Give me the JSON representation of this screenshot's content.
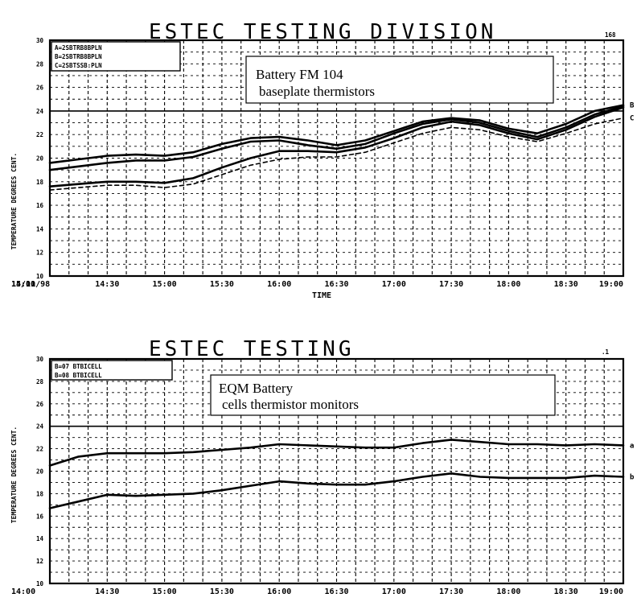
{
  "chart_data": [
    {
      "type": "line",
      "title": "ESTEC TESTING DIVISION",
      "corner_label": "168",
      "legend": [
        "A=2SBTRB8BPLN",
        "B=2SBTRB8BPLN",
        "C=2SBTSSB:PLN"
      ],
      "annotation": [
        "Battery FM 104",
        "baseplate thermistors"
      ],
      "xlabel": "TIME",
      "ylabel": "TEMPERATURE DEGREES CENT.",
      "date_label": "15/11/98",
      "x_ticks": [
        "14:00",
        "14:30",
        "15:00",
        "15:30",
        "16:00",
        "16:30",
        "17:00",
        "17:30",
        "18:00",
        "18:30",
        "19:00"
      ],
      "y_ticks": [
        "30",
        "28",
        "26",
        "24",
        "22",
        "20",
        "18",
        "16",
        "14",
        "12",
        "10"
      ],
      "ylim": [
        10,
        30
      ],
      "grid": true,
      "x": [
        "14:00",
        "14:15",
        "14:30",
        "14:45",
        "15:00",
        "15:15",
        "15:30",
        "15:45",
        "16:00",
        "16:15",
        "16:30",
        "16:45",
        "17:00",
        "17:15",
        "17:30",
        "17:45",
        "18:00",
        "18:15",
        "18:30",
        "18:45",
        "19:00"
      ],
      "series": [
        {
          "name": "B",
          "style": "solid",
          "values": [
            19.6,
            19.9,
            20.2,
            20.3,
            20.2,
            20.5,
            21.2,
            21.7,
            21.8,
            21.5,
            21.1,
            21.5,
            22.3,
            23.1,
            23.4,
            23.2,
            22.5,
            22.1,
            22.9,
            24.0,
            24.5
          ]
        },
        {
          "name": "",
          "style": "solid",
          "values": [
            19.0,
            19.3,
            19.6,
            19.8,
            19.8,
            20.1,
            20.8,
            21.4,
            21.5,
            21.1,
            20.8,
            21.2,
            22.1,
            22.9,
            23.3,
            23.0,
            22.3,
            21.8,
            22.6,
            23.7,
            24.4
          ]
        },
        {
          "name": "",
          "style": "solid",
          "values": [
            17.6,
            17.8,
            18.0,
            18.0,
            17.9,
            18.3,
            19.2,
            20.0,
            20.6,
            20.6,
            20.5,
            20.9,
            21.7,
            22.6,
            23.1,
            22.8,
            22.1,
            21.6,
            22.4,
            23.5,
            24.3
          ]
        },
        {
          "name": "C",
          "style": "dashed",
          "values": [
            17.3,
            17.5,
            17.7,
            17.7,
            17.5,
            17.8,
            18.6,
            19.4,
            19.9,
            20.1,
            20.1,
            20.5,
            21.3,
            22.1,
            22.6,
            22.4,
            21.8,
            21.4,
            22.1,
            22.9,
            23.4
          ]
        }
      ]
    },
    {
      "type": "line",
      "title": "ESTEC TESTING",
      "corner_label": ".1",
      "legend": [
        "B=07 BTBICELL",
        "B=08 BTBICELL"
      ],
      "annotation": [
        "EQM Battery",
        "cells thermistor  monitors"
      ],
      "xlabel": "",
      "ylabel": "TEMPERATURE DEGREES CENT.",
      "x_ticks": [
        "14:00",
        "14:30",
        "15:00",
        "15:30",
        "16:00",
        "16:30",
        "17:00",
        "17:30",
        "18:00",
        "18:30",
        "19:00"
      ],
      "y_ticks": [
        "30",
        "28",
        "26",
        "24",
        "22",
        "20",
        "18",
        "16",
        "14",
        "12",
        "10"
      ],
      "ylim": [
        10,
        30
      ],
      "grid": true,
      "x": [
        "14:00",
        "14:15",
        "14:30",
        "14:45",
        "15:00",
        "15:15",
        "15:30",
        "15:45",
        "16:00",
        "16:15",
        "16:30",
        "16:45",
        "17:00",
        "17:15",
        "17:30",
        "17:45",
        "18:00",
        "18:15",
        "18:30",
        "18:45",
        "19:00"
      ],
      "series": [
        {
          "name": "a",
          "style": "solid",
          "values": [
            20.5,
            21.3,
            21.6,
            21.6,
            21.6,
            21.7,
            21.9,
            22.1,
            22.4,
            22.3,
            22.2,
            22.1,
            22.1,
            22.5,
            22.8,
            22.6,
            22.4,
            22.4,
            22.3,
            22.4,
            22.3
          ]
        },
        {
          "name": "b",
          "style": "solid",
          "values": [
            16.7,
            17.3,
            17.9,
            17.8,
            17.9,
            18.0,
            18.3,
            18.7,
            19.1,
            18.9,
            18.8,
            18.8,
            19.1,
            19.5,
            19.8,
            19.5,
            19.4,
            19.4,
            19.4,
            19.6,
            19.5
          ]
        }
      ]
    }
  ]
}
